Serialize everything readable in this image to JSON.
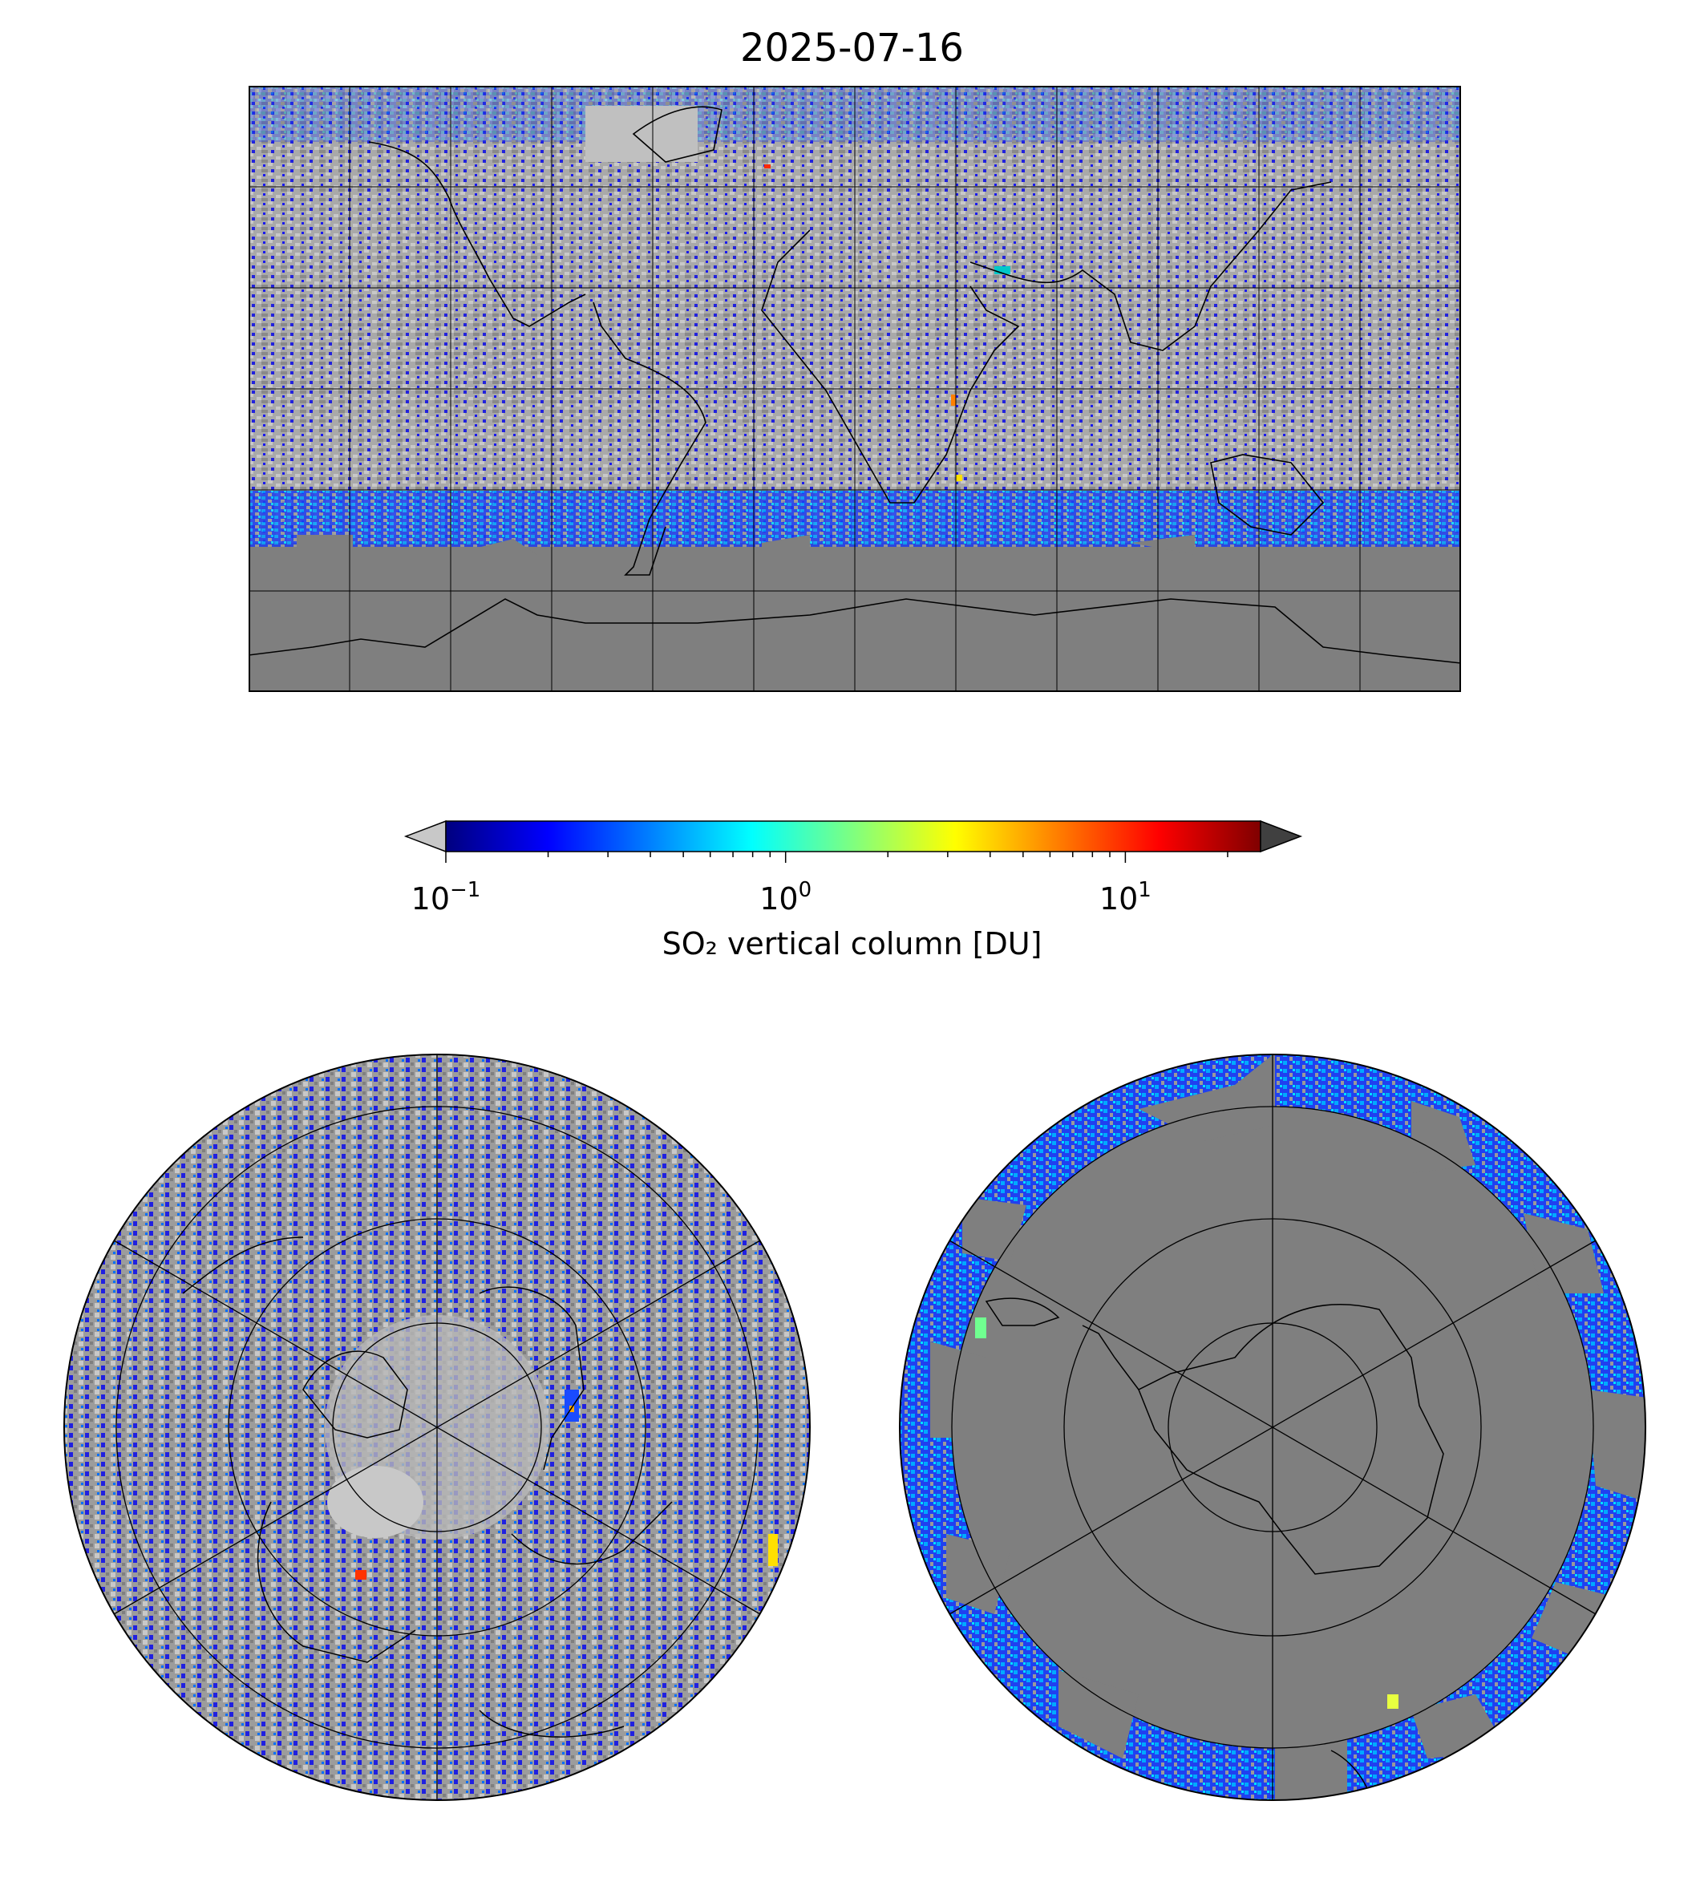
{
  "figure": {
    "title": "2025-07-16"
  },
  "panels": {
    "world": {
      "name": "Global equirectangular map",
      "grid_lon_step_deg": 30,
      "grid_lat_step_deg": 30
    },
    "north": {
      "name": "North polar stereographic"
    },
    "south": {
      "name": "South polar stereographic"
    }
  },
  "colorbar": {
    "label": "SO₂ vertical column [DU]",
    "scale": "log",
    "vmin": 0.1,
    "vmax": 25,
    "extend": "both",
    "under_color": "#c8c8c8",
    "over_color": "#404040",
    "ticks": [
      {
        "value": 0.1,
        "base": "10",
        "exp": "−1"
      },
      {
        "value": 1,
        "base": "10",
        "exp": "0"
      },
      {
        "value": 10,
        "base": "10",
        "exp": "1"
      }
    ],
    "colormap": [
      "#00007f",
      "#0000ff",
      "#007fff",
      "#00ffff",
      "#7fff7f",
      "#ffff00",
      "#ff7f00",
      "#ff0000",
      "#7f0000"
    ]
  },
  "colors": {
    "no_data": "#7f7f7f",
    "below_threshold": "#c0c0c0",
    "coastline": "#000000"
  }
}
